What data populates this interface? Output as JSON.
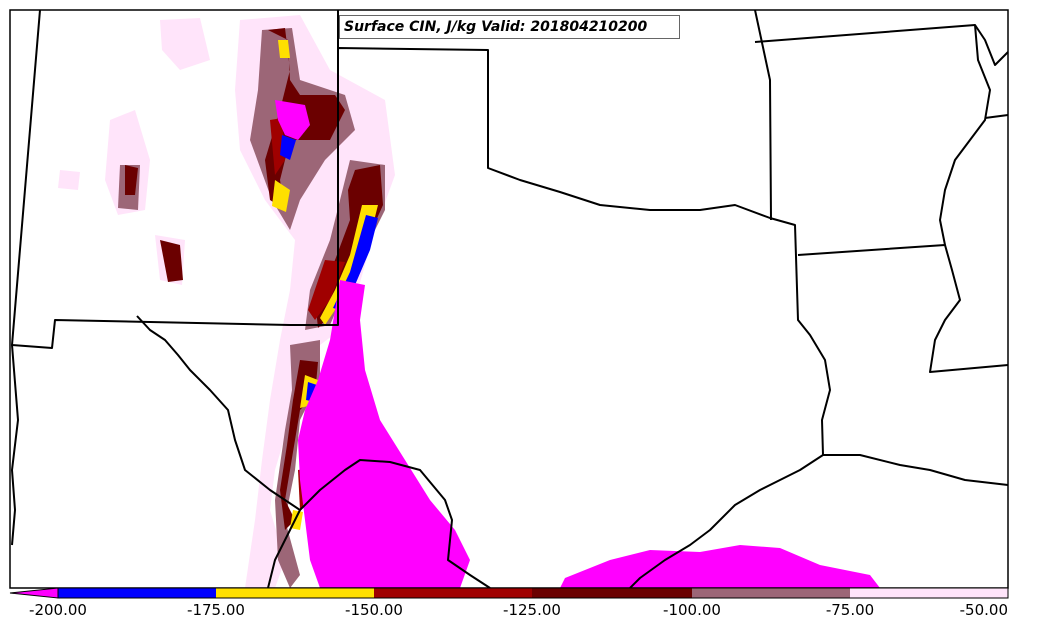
{
  "title": "Surface CIN, J/kg Valid: 201804210200",
  "colorbar": {
    "ticks": [
      "-200.00",
      "-175.00",
      "-150.00",
      "-125.00",
      "-100.00",
      "-75.00",
      "-50.00"
    ],
    "bins": [
      {
        "from": -200,
        "to": -175,
        "color": "#0000ff"
      },
      {
        "from": -175,
        "to": -150,
        "color": "#ffe000"
      },
      {
        "from": -150,
        "to": -125,
        "color": "#a00000"
      },
      {
        "from": -125,
        "to": -100,
        "color": "#6b0000"
      },
      {
        "from": -100,
        "to": -75,
        "color": "#9c6677"
      },
      {
        "from": -75,
        "to": -50,
        "color": "#ffe4fa"
      }
    ],
    "under_color": "#ff00ff"
  },
  "colors": {
    "strong_cin": "#ff00ff",
    "band_blue": "#0000ff",
    "band_yellow": "#ffe000",
    "band_red": "#a00000",
    "band_darkred": "#6b0000",
    "band_mauve": "#9c6677",
    "band_pink": "#ffe4fa",
    "boundaries": "#000000"
  }
}
